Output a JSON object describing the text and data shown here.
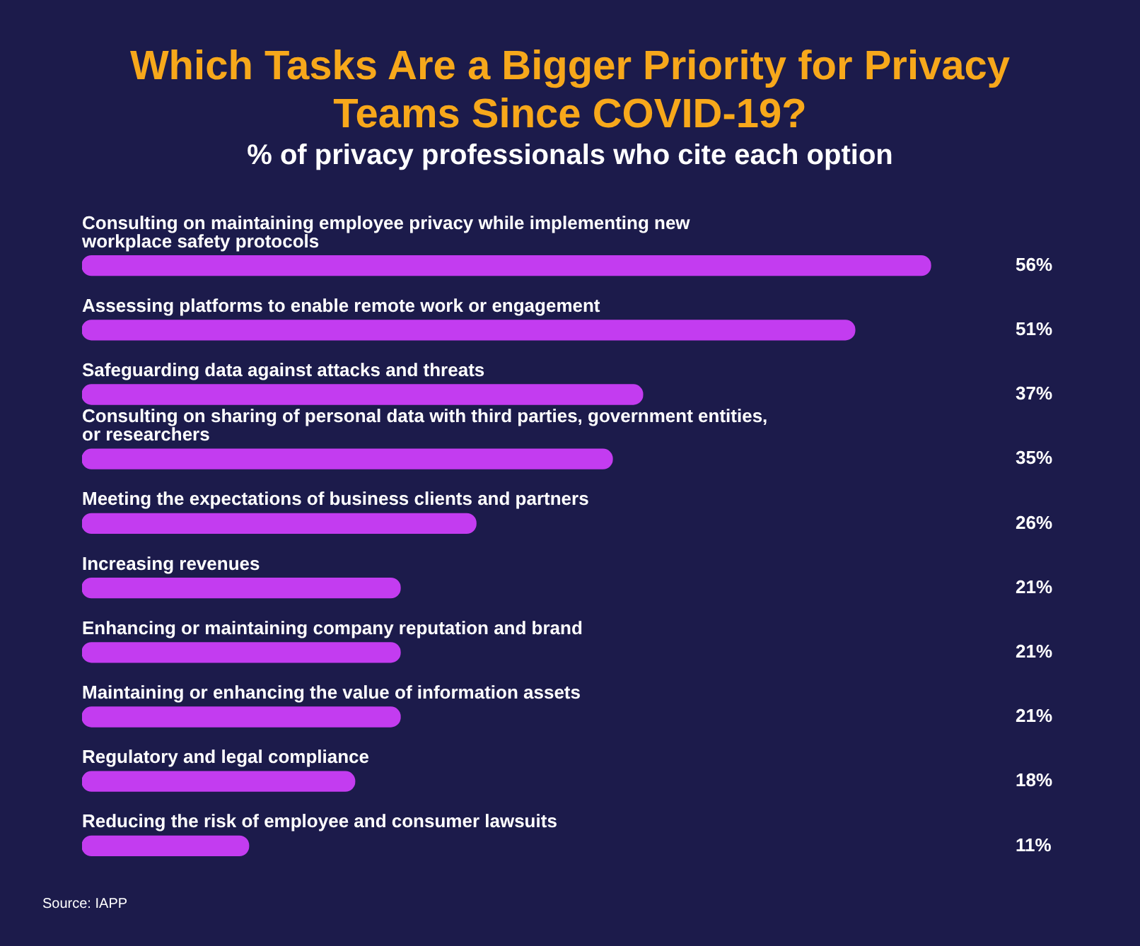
{
  "chart_data": {
    "type": "bar",
    "orientation": "horizontal",
    "title": "Which Tasks Are a Bigger Priority for Privacy Teams Since COVID-19?",
    "subtitle": "% of privacy professionals who cite each option",
    "categories": [
      "Consulting on maintaining employee privacy while implementing new workplace safety protocols",
      "Assessing platforms to enable remote work or engagement",
      "Safeguarding data against attacks and threats",
      "Consulting on sharing of personal data with third parties, government entities, or researchers",
      "Meeting the expectations of business clients and partners",
      "Increasing revenues",
      "Enhancing or maintaining company reputation and brand",
      "Maintaining or enhancing the value of information assets",
      "Regulatory and legal compliance",
      "Reducing the risk of employee and consumer lawsuits"
    ],
    "values": [
      56,
      51,
      37,
      35,
      26,
      21,
      21,
      21,
      18,
      11
    ],
    "value_labels": [
      "56%",
      "51%",
      "37%",
      "35%",
      "26%",
      "21%",
      "21%",
      "21%",
      "18%",
      "11%"
    ],
    "color": "#c33cf0",
    "tick_labels": false,
    "annotations": [
      "Source: IAPP"
    ]
  }
}
